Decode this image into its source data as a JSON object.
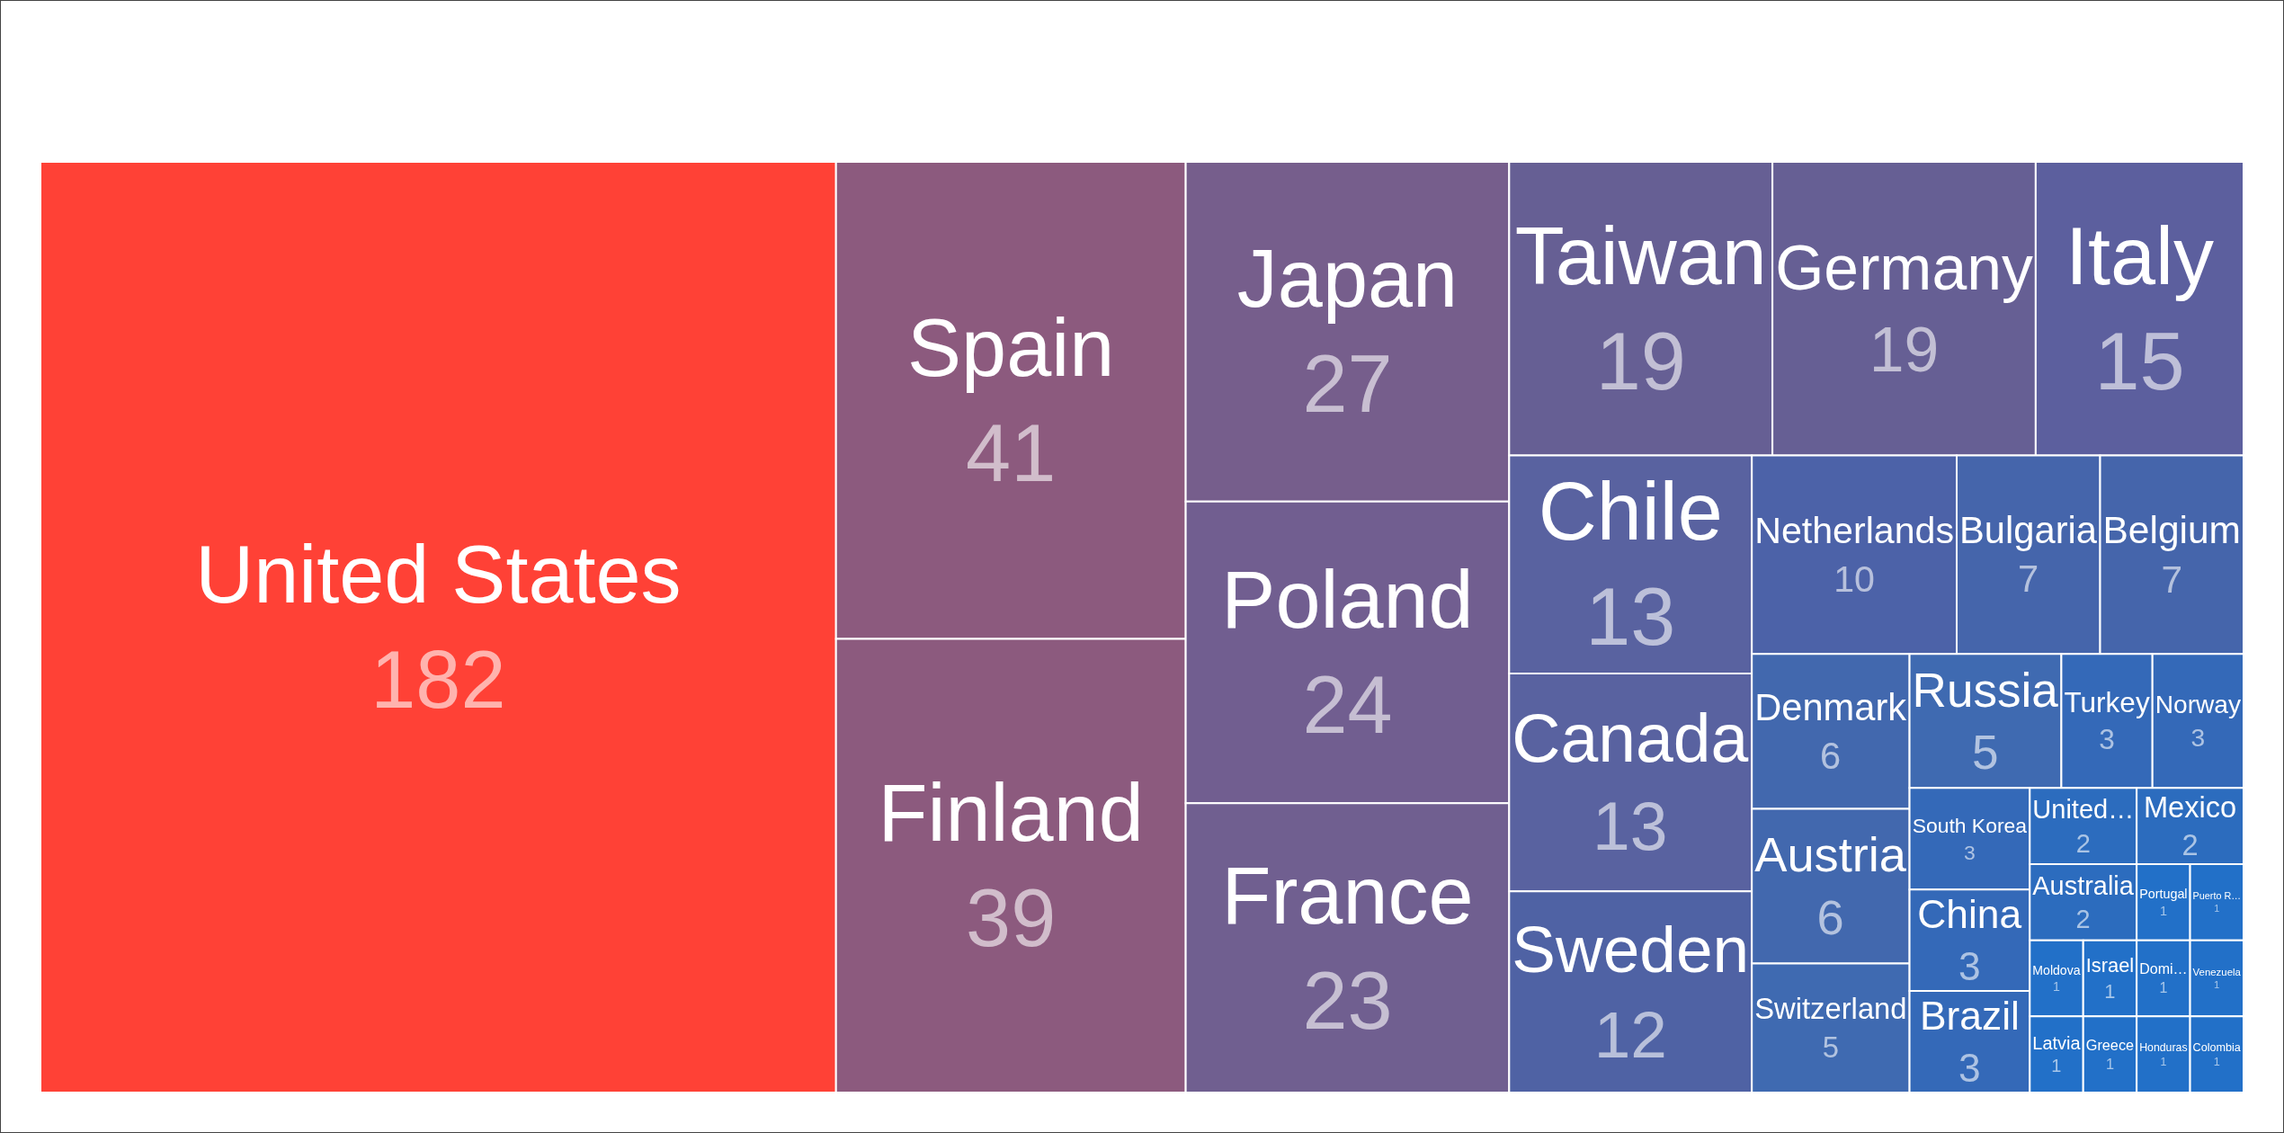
{
  "chart_data": {
    "type": "other",
    "data_labels": true,
    "categories": [
      "United States",
      "Spain",
      "Finland",
      "Japan",
      "Poland",
      "France",
      "Taiwan",
      "Germany",
      "Italy",
      "Chile",
      "Canada",
      "Sweden",
      "Netherlands",
      "Bulgaria",
      "Belgium",
      "Denmark",
      "Austria",
      "Switzerland",
      "Russia",
      "Turkey",
      "Norway",
      "South Korea",
      "China",
      "Brazil",
      "United…",
      "Mexico",
      "Australia",
      "Portugal",
      "Puerto R…",
      "Moldova",
      "Latvia",
      "Israel",
      "Greece",
      "Domi…",
      "Venezuela",
      "Honduras",
      "Colombia"
    ],
    "values": [
      182,
      41,
      39,
      27,
      24,
      23,
      19,
      19,
      15,
      13,
      13,
      12,
      10,
      7,
      7,
      6,
      6,
      5,
      5,
      3,
      3,
      3,
      3,
      3,
      2,
      2,
      2,
      1,
      1,
      1,
      1,
      1,
      1,
      1,
      1,
      1,
      1
    ],
    "colors": [
      "#ff4136",
      "#8c5a7e",
      "#8c5a7e",
      "#765e8c",
      "#715e90",
      "#705f90",
      "#665f94",
      "#665f94",
      "#5c5f9e",
      "#5962a0",
      "#5962a0",
      "#4f62a4",
      "#4c62a8",
      "#4565ab",
      "#4565ab",
      "#4268ae",
      "#4268ae",
      "#3f6ab1",
      "#3f6ab1",
      "#3469b8",
      "#3469b8",
      "#3469b8",
      "#3469b8",
      "#3469b8",
      "#2c6cbe",
      "#2c6cbe",
      "#2c6cbe",
      "#2270c8",
      "#2270c8",
      "#2270c8",
      "#2270c8",
      "#2270c8",
      "#2270c8",
      "#2270c8",
      "#2270c8",
      "#2270c8",
      "#2270c8"
    ]
  }
}
